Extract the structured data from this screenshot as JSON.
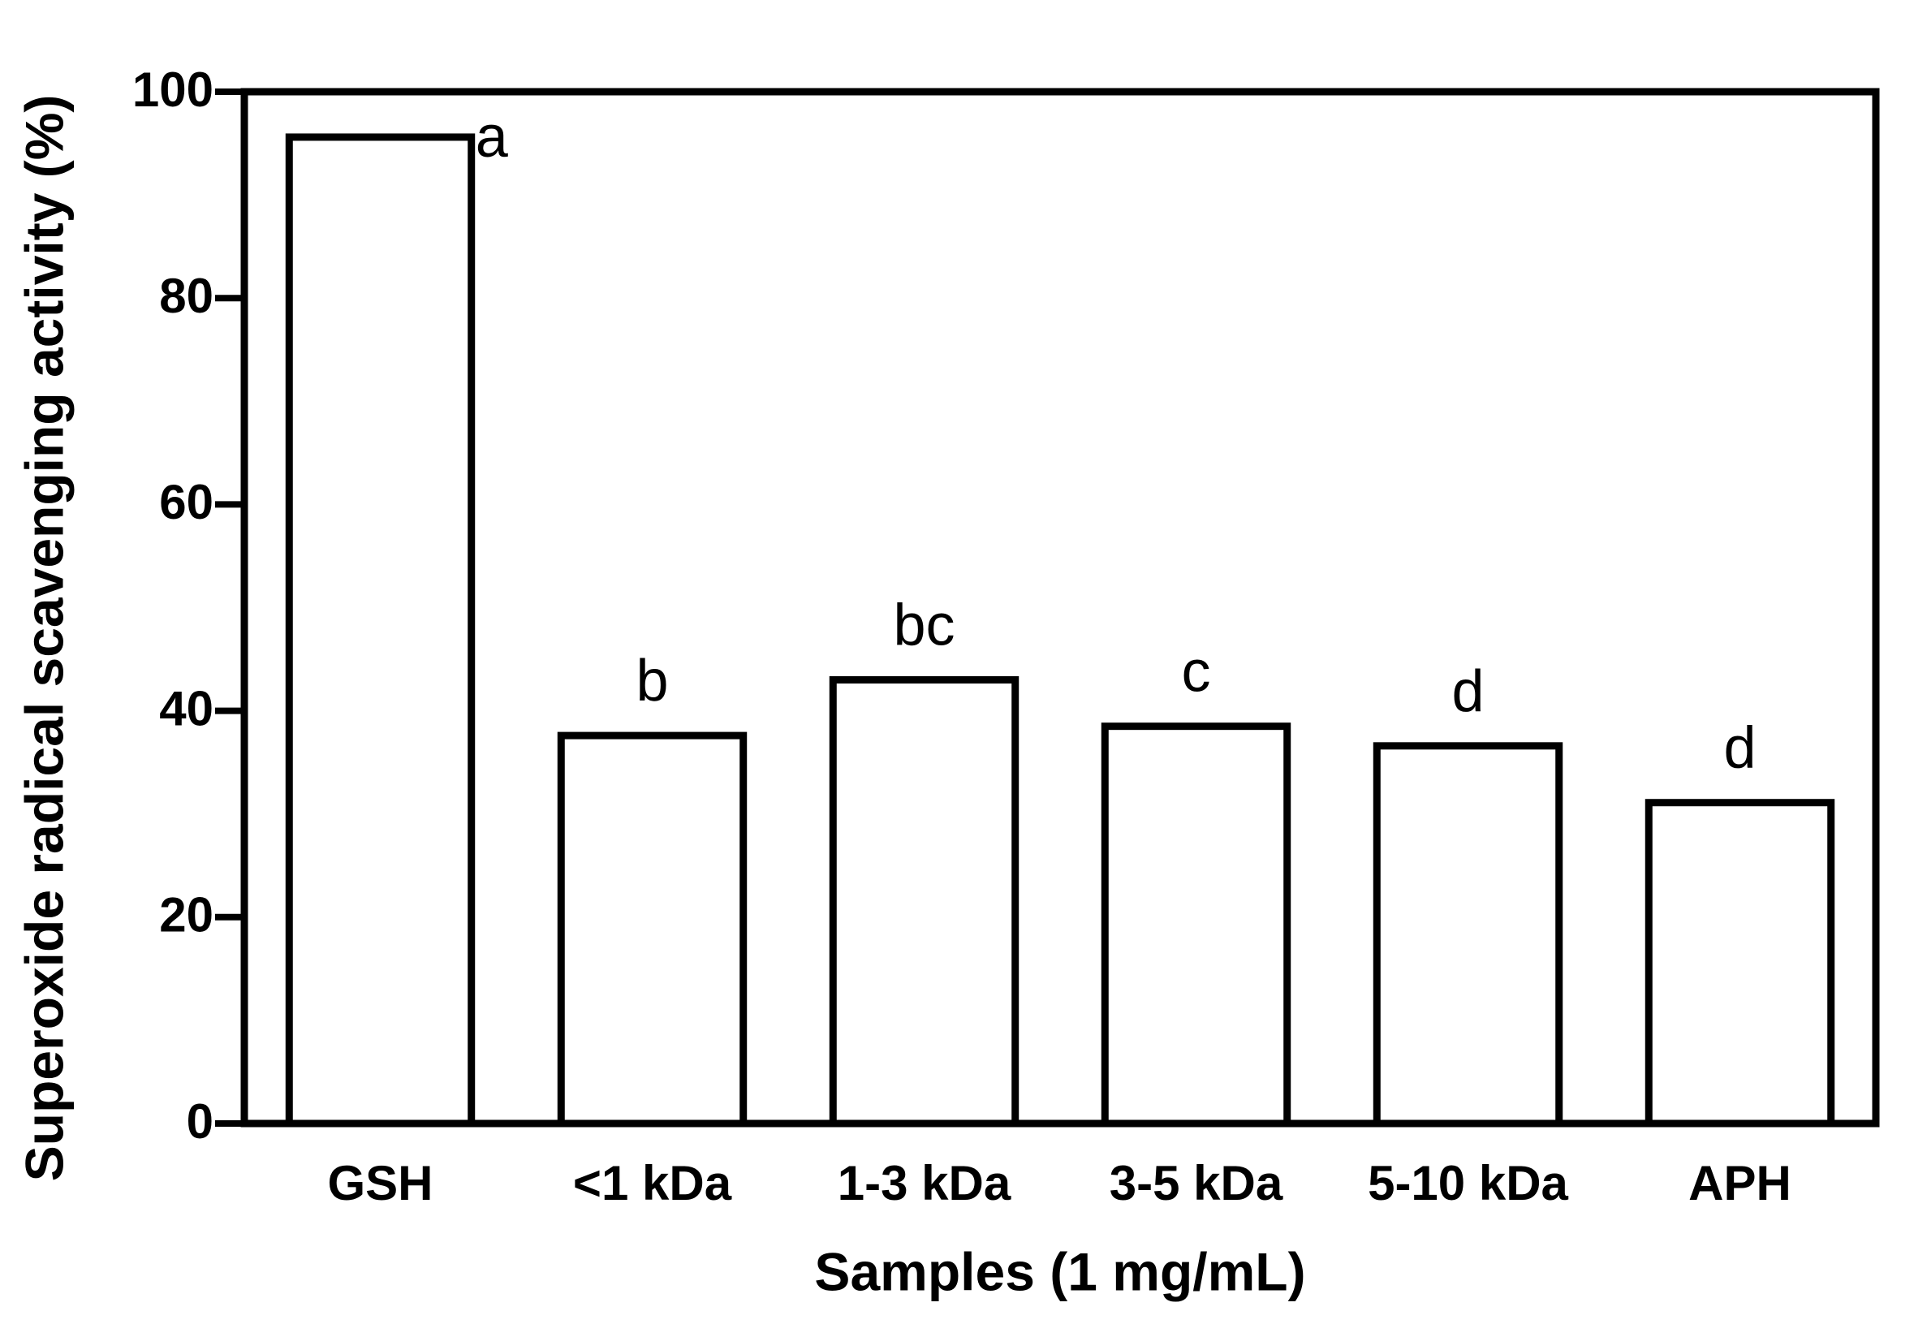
{
  "chart_data": {
    "type": "bar",
    "x_label": "Samples (1 mg/mL)",
    "y_label": "Superoxide radical scavenging activity (%)",
    "categories": [
      "GSH",
      "<1 kDa",
      "1-3 kDa",
      "3-5 kDa",
      "5-10 kDa",
      "APH"
    ],
    "values": [
      95.6,
      37.6,
      43.0,
      38.5,
      36.6,
      31.1
    ],
    "annotations": [
      "a",
      "b",
      "bc",
      "c",
      "d",
      "d"
    ],
    "color": "#ffffff",
    "ylim": [
      0,
      100
    ],
    "yticks": [
      0,
      20,
      40,
      60,
      80,
      100
    ],
    "grid": false
  }
}
